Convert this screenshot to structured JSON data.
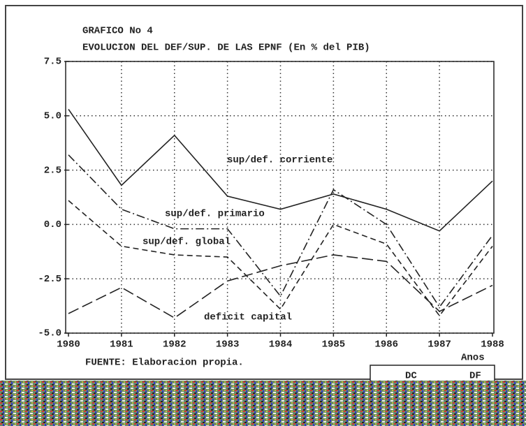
{
  "chart_data": {
    "type": "line",
    "title": "GRAFICO No 4",
    "subtitle": "EVOLUCION DEL DEF/SUP. DE LAS EPNF (En % del PIB)",
    "categories": [
      "1980",
      "1981",
      "1982",
      "1983",
      "1984",
      "1985",
      "1986",
      "1987",
      "1988"
    ],
    "series": [
      {
        "name": "sup/def. corriente",
        "color": "#222222",
        "linestyle": "solid",
        "values": [
          5.3,
          1.8,
          4.1,
          1.3,
          0.7,
          1.4,
          0.7,
          -0.3,
          2.0
        ]
      },
      {
        "name": "sup/def. primario",
        "color": "#222222",
        "linestyle": "dashdot",
        "values": [
          3.2,
          0.7,
          -0.2,
          -0.2,
          -3.3,
          1.6,
          0.0,
          -3.8,
          -0.5
        ]
      },
      {
        "name": "sup/def. global",
        "color": "#222222",
        "linestyle": "dashed",
        "values": [
          1.1,
          -1.0,
          -1.4,
          -1.5,
          -3.9,
          0.0,
          -0.9,
          -4.2,
          -1.0
        ]
      },
      {
        "name": "deficit capital",
        "color": "#222222",
        "linestyle": "longdash",
        "values": [
          -4.1,
          -2.9,
          -4.3,
          -2.6,
          -1.9,
          -1.4,
          -1.7,
          -4.0,
          -2.8
        ]
      }
    ],
    "ylim": [
      -5,
      7.5
    ],
    "yticks": [
      {
        "value": -5,
        "label": "-5.0"
      },
      -2.5,
      {
        "value": 0,
        "label": "0.0"
      },
      2.5,
      {
        "value": 5,
        "label": "5.0"
      },
      7.5
    ],
    "grid": true,
    "x_unit_label": "Anos",
    "source": "FUENTE: Elaboracion propia.",
    "box_labels": [
      "DC",
      "DF"
    ]
  }
}
